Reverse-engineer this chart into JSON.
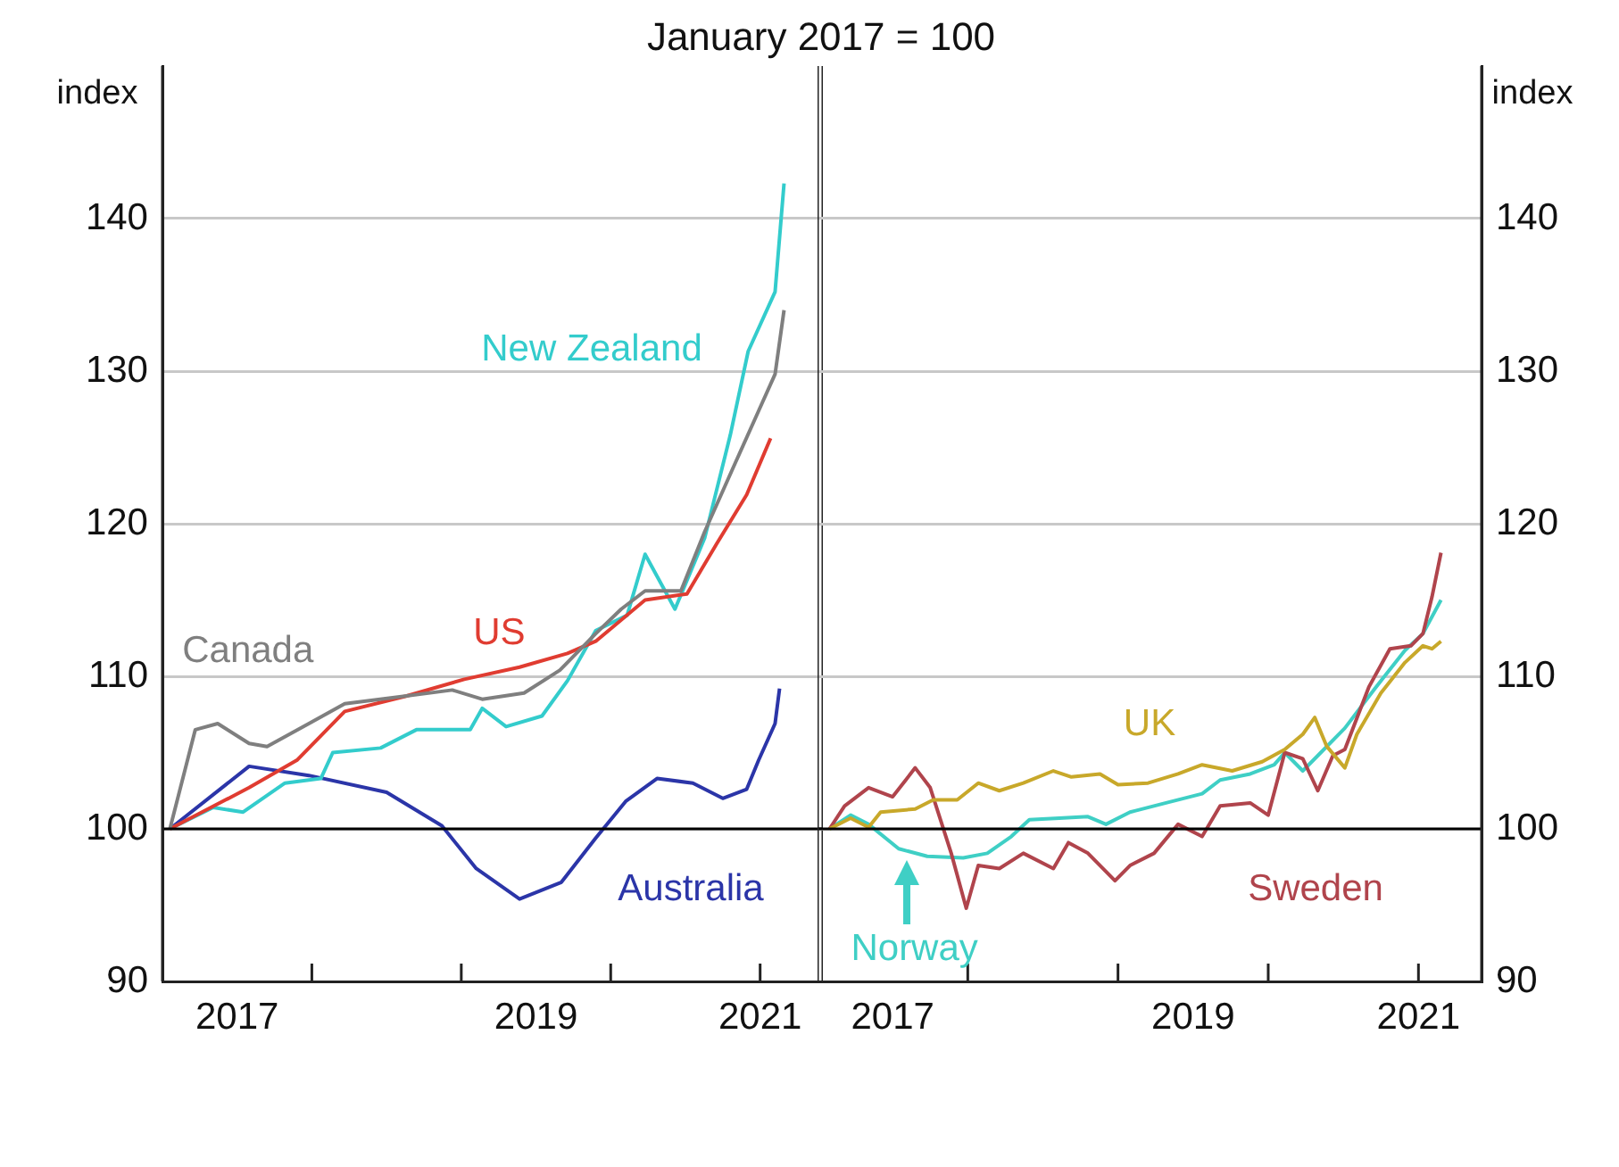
{
  "chart_data": [
    {
      "type": "line",
      "title": "January 2017 = 100",
      "ylabel": "index",
      "xlim": [
        2017,
        2021.42
      ],
      "ylim": [
        90,
        150
      ],
      "xticks": [
        {
          "value": 2017.5,
          "label": "2017"
        },
        {
          "value": 2018,
          "label": null
        },
        {
          "value": 2019,
          "label": null
        },
        {
          "value": 2019.5,
          "label": "2019"
        },
        {
          "value": 2020,
          "label": null
        },
        {
          "value": 2021,
          "label": "2021"
        }
      ],
      "yticks": [
        90,
        100,
        110,
        120,
        130,
        140
      ],
      "grid": "y",
      "marker": "none",
      "ref_lines": [
        {
          "axis": "y",
          "value": 100,
          "color": "#000000"
        }
      ],
      "series": [
        {
          "name": "Canada",
          "color": "#7f7f7f",
          "x": [
            2017.05,
            2017.22,
            2017.37,
            2017.58,
            2017.7,
            2017.98,
            2018.22,
            2018.54,
            2018.94,
            2019.14,
            2019.42,
            2019.66,
            2019.9,
            2020.07,
            2020.23,
            2020.47,
            2020.63,
            2020.83,
            2020.99,
            2021.1,
            2021.16
          ],
          "values": [
            100,
            106.5,
            106.9,
            105.6,
            105.4,
            106.9,
            108.2,
            108.6,
            109.1,
            108.5,
            108.9,
            110.4,
            112.8,
            114.4,
            115.6,
            115.6,
            119.5,
            123.9,
            127.4,
            129.8,
            134
          ]
        },
        {
          "name": "US",
          "color": "#e03c31",
          "x": [
            2017.05,
            2017.58,
            2017.9,
            2018.22,
            2018.63,
            2019.02,
            2019.39,
            2019.71,
            2019.9,
            2020.23,
            2020.51,
            2020.71,
            2020.91,
            2021.07
          ],
          "values": [
            100,
            102.7,
            104.5,
            107.7,
            108.7,
            109.8,
            110.6,
            111.5,
            112.3,
            115,
            115.4,
            118.7,
            121.9,
            125.6
          ]
        },
        {
          "name": "New Zealand",
          "color": "#33cccc",
          "x": [
            2017.05,
            2017.34,
            2017.54,
            2017.82,
            2018.06,
            2018.14,
            2018.46,
            2018.7,
            2019.06,
            2019.14,
            2019.3,
            2019.54,
            2019.71,
            2019.9,
            2020.11,
            2020.23,
            2020.43,
            2020.63,
            2020.8,
            2020.92,
            2021.1,
            2021.16
          ],
          "values": [
            100,
            101.4,
            101.1,
            103,
            103.3,
            105,
            105.3,
            106.5,
            106.5,
            107.9,
            106.7,
            107.4,
            109.7,
            113,
            114,
            118,
            114.4,
            119.1,
            125.8,
            131.3,
            135.2,
            142.3
          ]
        },
        {
          "name": "Australia",
          "color": "#2b35a8",
          "x": [
            2017.05,
            2017.58,
            2017.98,
            2018.5,
            2018.87,
            2019.1,
            2019.39,
            2019.67,
            2019.9,
            2020.1,
            2020.31,
            2020.55,
            2020.75,
            2020.91,
            2020.99,
            2021.1,
            2021.13
          ],
          "values": [
            100,
            104.1,
            103.5,
            102.4,
            100.2,
            97.4,
            95.4,
            96.5,
            99.4,
            101.8,
            103.3,
            103,
            102,
            102.6,
            104.5,
            106.9,
            109.2
          ]
        }
      ]
    },
    {
      "type": "line",
      "ylabel": "index",
      "xlim": [
        2017,
        2021.42
      ],
      "ylim": [
        90,
        150
      ],
      "xticks": [
        {
          "value": 2017.5,
          "label": "2017"
        },
        {
          "value": 2018,
          "label": null
        },
        {
          "value": 2019,
          "label": null
        },
        {
          "value": 2019.5,
          "label": "2019"
        },
        {
          "value": 2020,
          "label": null
        },
        {
          "value": 2021,
          "label": "2021"
        }
      ],
      "yticks": [
        90,
        100,
        110,
        120,
        130,
        140
      ],
      "grid": "y",
      "marker": "none",
      "ref_lines": [
        {
          "axis": "y",
          "value": 100,
          "color": "#000000"
        }
      ],
      "series": [
        {
          "name": "UK",
          "color": "#c8a82a",
          "x": [
            2017.08,
            2017.22,
            2017.34,
            2017.42,
            2017.65,
            2017.77,
            2017.93,
            2018.07,
            2018.21,
            2018.37,
            2018.57,
            2018.69,
            2018.88,
            2019.0,
            2019.2,
            2019.4,
            2019.56,
            2019.76,
            2019.96,
            2020.11,
            2020.23,
            2020.31,
            2020.39,
            2020.51,
            2020.59,
            2020.75,
            2020.91,
            2021.03,
            2021.09,
            2021.15
          ],
          "values": [
            100,
            100.7,
            100.1,
            101.1,
            101.3,
            101.9,
            101.9,
            103,
            102.5,
            103,
            103.8,
            103.4,
            103.6,
            102.9,
            103,
            103.6,
            104.2,
            103.8,
            104.4,
            105.2,
            106.2,
            107.3,
            105.4,
            104,
            106.2,
            108.9,
            110.9,
            112,
            111.8,
            112.3
          ]
        },
        {
          "name": "Sweden",
          "color": "#b0444c",
          "x": [
            2017.08,
            2017.18,
            2017.34,
            2017.5,
            2017.65,
            2017.75,
            2017.89,
            2017.99,
            2018.07,
            2018.21,
            2018.37,
            2018.57,
            2018.67,
            2018.8,
            2018.98,
            2019.08,
            2019.24,
            2019.4,
            2019.56,
            2019.68,
            2019.88,
            2020.0,
            2020.11,
            2020.23,
            2020.33,
            2020.43,
            2020.51,
            2020.67,
            2020.81,
            2020.95,
            2021.03,
            2021.09,
            2021.15
          ],
          "values": [
            100,
            101.5,
            102.7,
            102.1,
            104,
            102.7,
            98.4,
            94.8,
            97.6,
            97.4,
            98.4,
            97.4,
            99.1,
            98.4,
            96.6,
            97.6,
            98.4,
            100.3,
            99.5,
            101.5,
            101.7,
            100.9,
            105,
            104.6,
            102.5,
            104.8,
            105.2,
            109.3,
            111.8,
            112,
            112.8,
            115.2,
            118.1
          ]
        },
        {
          "name": "Norway",
          "color": "#3fcfc5",
          "x": [
            2017.08,
            2017.22,
            2017.34,
            2017.54,
            2017.73,
            2017.97,
            2018.13,
            2018.29,
            2018.41,
            2018.61,
            2018.8,
            2018.92,
            2019.08,
            2019.32,
            2019.56,
            2019.68,
            2019.88,
            2020.04,
            2020.11,
            2020.23,
            2020.35,
            2020.51,
            2020.71,
            2020.91,
            2021.03,
            2021.15
          ],
          "values": [
            100,
            100.9,
            100.3,
            98.7,
            98.2,
            98.1,
            98.4,
            99.5,
            100.6,
            100.7,
            100.8,
            100.3,
            101.1,
            101.7,
            102.3,
            103.2,
            103.6,
            104.2,
            105,
            103.8,
            105,
            106.6,
            109.2,
            111.7,
            112.8,
            115
          ]
        }
      ]
    }
  ]
}
